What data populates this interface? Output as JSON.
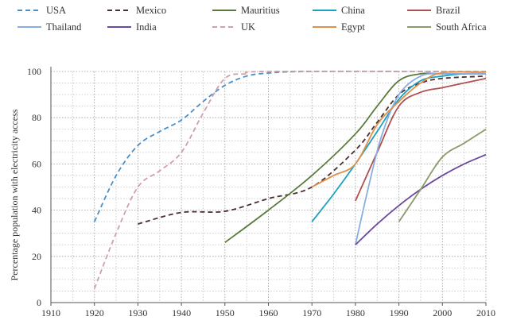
{
  "chart_data": {
    "type": "line",
    "title": "",
    "xlabel": "",
    "ylabel": "Percentage population with electricity access",
    "xlim": [
      1910,
      2010
    ],
    "ylim": [
      0,
      100
    ],
    "xticks": [
      1910,
      1920,
      1930,
      1940,
      1950,
      1960,
      1970,
      1980,
      1990,
      2000,
      2010
    ],
    "yticks": [
      0,
      20,
      40,
      60,
      80,
      100
    ],
    "grid": "dotted",
    "legend_position": "top",
    "series": [
      {
        "name": "USA",
        "color": "#4a90c8",
        "dashed": true,
        "points": [
          [
            1920,
            35
          ],
          [
            1925,
            55
          ],
          [
            1930,
            68
          ],
          [
            1935,
            74
          ],
          [
            1940,
            79
          ],
          [
            1945,
            87
          ],
          [
            1950,
            94
          ],
          [
            1955,
            98
          ],
          [
            1960,
            99.3
          ],
          [
            1970,
            100
          ],
          [
            2010,
            100
          ]
        ]
      },
      {
        "name": "Mexico",
        "color": "#4a3030",
        "dashed": true,
        "points": [
          [
            1930,
            34
          ],
          [
            1940,
            39
          ],
          [
            1950,
            39.5
          ],
          [
            1960,
            45
          ],
          [
            1970,
            50
          ],
          [
            1980,
            66
          ],
          [
            1985,
            78
          ],
          [
            1990,
            90
          ],
          [
            1995,
            95
          ],
          [
            2000,
            97
          ],
          [
            2010,
            98
          ]
        ]
      },
      {
        "name": "Mauritius",
        "color": "#5a7a3c",
        "dashed": false,
        "points": [
          [
            1950,
            26
          ],
          [
            1960,
            40
          ],
          [
            1970,
            55
          ],
          [
            1980,
            73
          ],
          [
            1985,
            85
          ],
          [
            1990,
            96
          ],
          [
            1995,
            99
          ],
          [
            2000,
            99
          ],
          [
            2010,
            99
          ]
        ]
      },
      {
        "name": "China",
        "color": "#1aa0c0",
        "dashed": false,
        "points": [
          [
            1970,
            35
          ],
          [
            1975,
            47
          ],
          [
            1980,
            60
          ],
          [
            1985,
            74
          ],
          [
            1990,
            88
          ],
          [
            1995,
            96
          ],
          [
            2000,
            98
          ],
          [
            2005,
            99
          ],
          [
            2010,
            99
          ]
        ]
      },
      {
        "name": "Brazil",
        "color": "#b05050",
        "dashed": false,
        "points": [
          [
            1980,
            44
          ],
          [
            1985,
            65
          ],
          [
            1990,
            85
          ],
          [
            1995,
            91
          ],
          [
            2000,
            93
          ],
          [
            2005,
            95
          ],
          [
            2010,
            97
          ]
        ]
      },
      {
        "name": "Thailand",
        "color": "#88aee0",
        "dashed": false,
        "points": [
          [
            1980,
            25
          ],
          [
            1983,
            50
          ],
          [
            1986,
            72
          ],
          [
            1990,
            90
          ],
          [
            1995,
            98
          ],
          [
            2000,
            99
          ],
          [
            2010,
            99
          ]
        ]
      },
      {
        "name": "India",
        "color": "#6a4aa0",
        "dashed": false,
        "points": [
          [
            1980,
            25
          ],
          [
            1985,
            34
          ],
          [
            1990,
            42
          ],
          [
            1995,
            49
          ],
          [
            2000,
            55
          ],
          [
            2005,
            60
          ],
          [
            2010,
            64
          ]
        ]
      },
      {
        "name": "UK",
        "color": "#d0a0a8",
        "dashed": true,
        "points": [
          [
            1920,
            6
          ],
          [
            1925,
            30
          ],
          [
            1930,
            50
          ],
          [
            1935,
            57
          ],
          [
            1940,
            65
          ],
          [
            1945,
            82
          ],
          [
            1950,
            97
          ],
          [
            1955,
            99
          ],
          [
            1960,
            100
          ],
          [
            2010,
            100
          ]
        ]
      },
      {
        "name": "Egypt",
        "color": "#e0904a",
        "dashed": false,
        "points": [
          [
            1970,
            50
          ],
          [
            1975,
            55
          ],
          [
            1980,
            60
          ],
          [
            1985,
            77
          ],
          [
            1990,
            87
          ],
          [
            1995,
            95
          ],
          [
            2000,
            99.5
          ],
          [
            2010,
            99.7
          ]
        ]
      },
      {
        "name": "South Africa",
        "color": "#8a9a68",
        "dashed": false,
        "points": [
          [
            1990,
            35
          ],
          [
            1995,
            49
          ],
          [
            2000,
            63
          ],
          [
            2005,
            69
          ],
          [
            2010,
            75
          ]
        ]
      }
    ]
  }
}
